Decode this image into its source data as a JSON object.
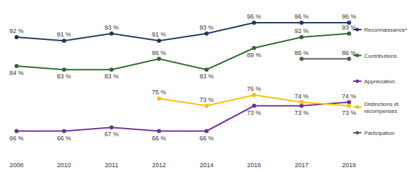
{
  "chart_data": {
    "type": "line",
    "categories": [
      "2008",
      "2010",
      "2011",
      "2012",
      "2014",
      "2016",
      "2017",
      "2018"
    ],
    "ylim": [
      60,
      100
    ],
    "tick_labels": "x",
    "data_labels": true,
    "marker": "circle",
    "legend": "right",
    "series": [
      {
        "name": "Reconnaissance*",
        "color": "#203864",
        "values": [
          92,
          91,
          93,
          91,
          93,
          96,
          96,
          96
        ],
        "value_labels": [
          "92 %",
          "91 %",
          "93 %",
          "91 %",
          "93 %",
          "96 %",
          "96 %",
          "96 %"
        ]
      },
      {
        "name": "Contributions",
        "color": "#2d6a2e",
        "values": [
          84,
          83,
          83,
          86,
          83,
          89,
          92,
          93
        ],
        "value_labels": [
          "84 %",
          "83 %",
          "83 %",
          "86 %",
          "83 %",
          "89 %",
          "92 %",
          "93 %"
        ]
      },
      {
        "name": "Appréciation",
        "color": "#7030a0",
        "values": [
          66,
          66,
          67,
          66,
          66,
          73,
          73,
          74
        ],
        "value_labels": [
          "66 %",
          "66 %",
          "67 %",
          "66 %",
          "66 %",
          "73 %",
          "73 %",
          "74 %"
        ]
      },
      {
        "name": "Distinctions et récompenses",
        "color": "#ffc000",
        "values": [
          null,
          null,
          null,
          75,
          73,
          76,
          74,
          73
        ],
        "value_labels": [
          null,
          null,
          null,
          "75 %",
          "73 %",
          "76 %",
          "74 %",
          "73 %"
        ]
      },
      {
        "name": "Participation",
        "color": "#595959",
        "values": [
          null,
          null,
          null,
          null,
          null,
          null,
          86,
          86
        ],
        "value_labels": [
          null,
          null,
          null,
          null,
          null,
          null,
          "86 %",
          "86 %"
        ]
      }
    ]
  }
}
